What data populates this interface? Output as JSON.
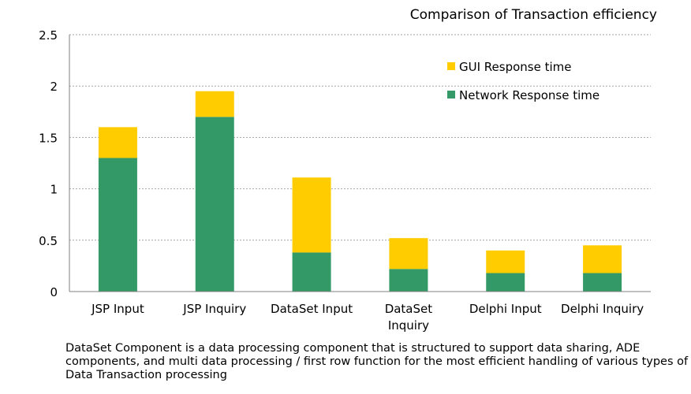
{
  "chart_data": {
    "type": "bar",
    "stacked": true,
    "title": "Comparison of Transaction efficiency",
    "categories": [
      [
        "JSP Input"
      ],
      [
        "JSP Inquiry"
      ],
      [
        "DataSet Input"
      ],
      [
        "DataSet",
        "Inquiry"
      ],
      [
        "Delphi Input"
      ],
      [
        "Delphi Inquiry"
      ]
    ],
    "series": [
      {
        "name": "Network Response time",
        "color": "#339966",
        "values": [
          1.3,
          1.7,
          0.38,
          0.22,
          0.18,
          0.18
        ]
      },
      {
        "name": "GUI Response time",
        "color": "#ffcc00",
        "values": [
          0.3,
          0.25,
          0.73,
          0.3,
          0.22,
          0.27
        ]
      }
    ],
    "legend_order": [
      1,
      0
    ],
    "legend_position": "top-right",
    "ylim": [
      0,
      2.5
    ],
    "yticks": [
      "0",
      "0.5",
      "1",
      "1.5",
      "2",
      "2.5"
    ],
    "grid": "horizontal-dashed",
    "xlabel": "",
    "ylabel": ""
  },
  "caption": "DataSet Component is a data processing component that is structured to support data sharing, ADE components, and multi data processing / first row function for the most efficient handling of various types of Data Transaction processing"
}
